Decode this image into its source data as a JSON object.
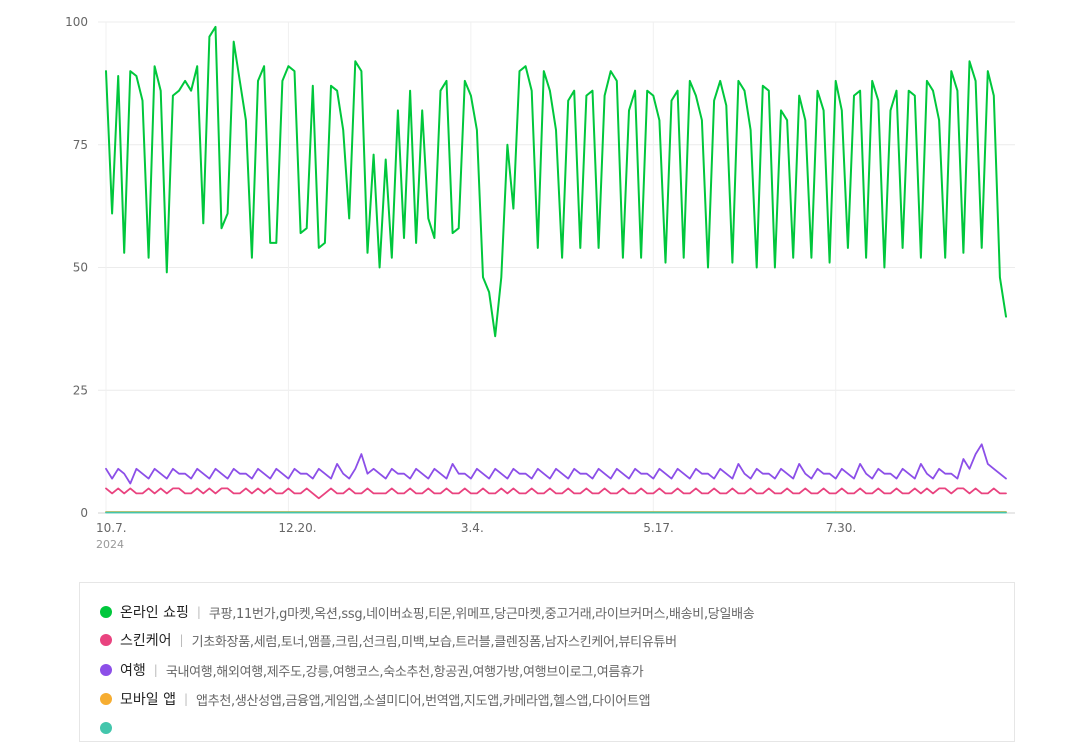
{
  "chart_data": {
    "type": "line",
    "ylim": [
      0,
      100
    ],
    "yticks": [
      0,
      25,
      50,
      75,
      100
    ],
    "xticks": [
      "10.7.",
      "12.20.",
      "3.4.",
      "5.17.",
      "7.30."
    ],
    "xtick_index": [
      0,
      30,
      60,
      90,
      120
    ],
    "year_label": "2024",
    "grid": true,
    "n_points": 149,
    "series": [
      {
        "name": "온라인 쇼핑",
        "color": "#00c73c",
        "values": [
          90,
          61,
          89,
          53,
          90,
          89,
          84,
          52,
          91,
          86,
          49,
          85,
          86,
          88,
          86,
          91,
          59,
          97,
          99,
          58,
          61,
          96,
          88,
          80,
          52,
          88,
          91,
          55,
          55,
          88,
          91,
          90,
          57,
          58,
          87,
          54,
          55,
          87,
          86,
          78,
          60,
          92,
          90,
          53,
          73,
          50,
          72,
          52,
          82,
          56,
          86,
          55,
          82,
          60,
          56,
          86,
          88,
          57,
          58,
          88,
          85,
          78,
          48,
          45,
          36,
          48,
          75,
          62,
          90,
          91,
          86,
          54,
          90,
          86,
          78,
          52,
          84,
          86,
          54,
          85,
          86,
          54,
          85,
          90,
          88,
          52,
          82,
          86,
          52,
          86,
          85,
          80,
          51,
          84,
          86,
          52,
          88,
          85,
          80,
          50,
          84,
          88,
          83,
          51,
          88,
          86,
          78,
          50,
          87,
          86,
          50,
          82,
          80,
          52,
          85,
          80,
          52,
          86,
          82,
          51,
          88,
          82,
          54,
          85,
          86,
          52,
          88,
          84,
          50,
          82,
          86,
          54,
          86,
          85,
          52,
          88,
          86,
          80,
          52,
          90,
          86,
          53,
          92,
          88,
          54,
          90,
          85,
          48,
          40
        ]
      },
      {
        "name": "스킨케어",
        "color": "#e9437f",
        "values": [
          5,
          4,
          5,
          4,
          5,
          4,
          4,
          5,
          4,
          5,
          4,
          5,
          5,
          4,
          4,
          5,
          4,
          5,
          4,
          5,
          5,
          4,
          4,
          5,
          4,
          5,
          4,
          5,
          4,
          4,
          5,
          4,
          4,
          5,
          4,
          3,
          4,
          5,
          4,
          4,
          5,
          4,
          4,
          5,
          4,
          4,
          4,
          5,
          4,
          4,
          5,
          4,
          4,
          5,
          4,
          4,
          5,
          4,
          4,
          5,
          4,
          4,
          5,
          4,
          4,
          5,
          4,
          5,
          4,
          4,
          5,
          4,
          4,
          5,
          4,
          4,
          5,
          4,
          4,
          5,
          4,
          4,
          5,
          4,
          4,
          5,
          4,
          4,
          5,
          4,
          4,
          5,
          4,
          4,
          5,
          4,
          4,
          5,
          4,
          4,
          5,
          4,
          4,
          5,
          4,
          4,
          5,
          4,
          4,
          5,
          4,
          4,
          5,
          4,
          4,
          5,
          4,
          4,
          5,
          4,
          4,
          5,
          4,
          4,
          5,
          4,
          4,
          5,
          4,
          4,
          5,
          4,
          4,
          5,
          4,
          5,
          4,
          5,
          5,
          4,
          5,
          5,
          4,
          5,
          4,
          4,
          5,
          4,
          4
        ]
      },
      {
        "name": "여행",
        "color": "#8c4fe8",
        "values": [
          9,
          7,
          9,
          8,
          6,
          9,
          8,
          7,
          9,
          8,
          7,
          9,
          8,
          8,
          7,
          9,
          8,
          7,
          9,
          8,
          7,
          9,
          8,
          8,
          7,
          9,
          8,
          7,
          9,
          8,
          7,
          9,
          8,
          8,
          7,
          9,
          8,
          7,
          10,
          8,
          7,
          9,
          12,
          8,
          9,
          8,
          7,
          9,
          8,
          8,
          7,
          9,
          8,
          7,
          9,
          8,
          7,
          10,
          8,
          8,
          7,
          9,
          8,
          7,
          9,
          8,
          7,
          9,
          8,
          8,
          7,
          9,
          8,
          7,
          9,
          8,
          7,
          9,
          8,
          8,
          7,
          9,
          8,
          7,
          9,
          8,
          7,
          9,
          8,
          8,
          7,
          9,
          8,
          7,
          9,
          8,
          7,
          9,
          8,
          8,
          7,
          9,
          8,
          7,
          10,
          8,
          7,
          9,
          8,
          8,
          7,
          9,
          8,
          7,
          10,
          8,
          7,
          9,
          8,
          8,
          7,
          9,
          8,
          7,
          10,
          8,
          7,
          9,
          8,
          8,
          7,
          9,
          8,
          7,
          10,
          8,
          7,
          9,
          8,
          8,
          7,
          11,
          9,
          12,
          14,
          10,
          9,
          8,
          7
        ]
      },
      {
        "name": "모바일 앱",
        "color": "#f6ad31",
        "values": [
          0.2,
          0.2,
          0.2,
          0.2,
          0.2,
          0.2,
          0.2,
          0.2,
          0.2,
          0.2,
          0.2,
          0.2,
          0.2,
          0.2,
          0.2,
          0.2,
          0.2,
          0.2,
          0.2,
          0.2,
          0.2,
          0.2,
          0.2,
          0.2,
          0.2,
          0.2,
          0.2,
          0.2,
          0.2,
          0.2,
          0.2,
          0.2,
          0.2,
          0.2,
          0.2,
          0.2,
          0.2,
          0.2,
          0.2,
          0.2,
          0.2,
          0.2,
          0.2,
          0.2,
          0.2,
          0.2,
          0.2,
          0.2,
          0.2,
          0.2,
          0.2,
          0.2,
          0.2,
          0.2,
          0.2,
          0.2,
          0.2,
          0.2,
          0.2,
          0.2,
          0.2,
          0.2,
          0.2,
          0.2,
          0.2,
          0.2,
          0.2,
          0.2,
          0.2,
          0.2,
          0.2,
          0.2,
          0.2,
          0.2,
          0.2,
          0.2,
          0.2,
          0.2,
          0.2,
          0.2,
          0.2,
          0.2,
          0.2,
          0.2,
          0.2,
          0.2,
          0.2,
          0.2,
          0.2,
          0.2,
          0.2,
          0.2,
          0.2,
          0.2,
          0.2,
          0.2,
          0.2,
          0.2,
          0.2,
          0.2,
          0.2,
          0.2,
          0.2,
          0.2,
          0.2,
          0.2,
          0.2,
          0.2,
          0.2,
          0.2,
          0.2,
          0.2,
          0.2,
          0.2,
          0.2,
          0.2,
          0.2,
          0.2,
          0.2,
          0.2,
          0.2,
          0.2,
          0.2,
          0.2,
          0.2,
          0.2,
          0.2,
          0.2,
          0.2,
          0.2,
          0.2,
          0.2,
          0.2,
          0.2,
          0.2,
          0.2,
          0.2,
          0.2,
          0.2,
          0.2,
          0.2,
          0.2,
          0.2,
          0.2,
          0.2,
          0.2,
          0.2,
          0.2,
          0.2
        ]
      },
      {
        "name": "",
        "color": "#43c6ac",
        "values": [
          0.1,
          0.1,
          0.1,
          0.1,
          0.1,
          0.1,
          0.1,
          0.1,
          0.1,
          0.1,
          0.1,
          0.1,
          0.1,
          0.1,
          0.1,
          0.1,
          0.1,
          0.1,
          0.1,
          0.1,
          0.1,
          0.1,
          0.1,
          0.1,
          0.1,
          0.1,
          0.1,
          0.1,
          0.1,
          0.1,
          0.1,
          0.1,
          0.1,
          0.1,
          0.1,
          0.1,
          0.1,
          0.1,
          0.1,
          0.1,
          0.1,
          0.1,
          0.1,
          0.1,
          0.1,
          0.1,
          0.1,
          0.1,
          0.1,
          0.1,
          0.1,
          0.1,
          0.1,
          0.1,
          0.1,
          0.1,
          0.1,
          0.1,
          0.1,
          0.1,
          0.1,
          0.1,
          0.1,
          0.1,
          0.1,
          0.1,
          0.1,
          0.1,
          0.1,
          0.1,
          0.1,
          0.1,
          0.1,
          0.1,
          0.1,
          0.1,
          0.1,
          0.1,
          0.1,
          0.1,
          0.1,
          0.1,
          0.1,
          0.1,
          0.1,
          0.1,
          0.1,
          0.1,
          0.1,
          0.1,
          0.1,
          0.1,
          0.1,
          0.1,
          0.1,
          0.1,
          0.1,
          0.1,
          0.1,
          0.1,
          0.1,
          0.1,
          0.1,
          0.1,
          0.1,
          0.1,
          0.1,
          0.1,
          0.1,
          0.1,
          0.1,
          0.1,
          0.1,
          0.1,
          0.1,
          0.1,
          0.1,
          0.1,
          0.1,
          0.1,
          0.1,
          0.1,
          0.1,
          0.1,
          0.1,
          0.1,
          0.1,
          0.1,
          0.1,
          0.1,
          0.1,
          0.1,
          0.1,
          0.1,
          0.1,
          0.1,
          0.1,
          0.1,
          0.1,
          0.1,
          0.1,
          0.1,
          0.1,
          0.1,
          0.1,
          0.1,
          0.1,
          0.1,
          0.1
        ]
      }
    ]
  },
  "legend": [
    {
      "name": "온라인 쇼핑",
      "color": "#00c73c",
      "keywords": "쿠팡,11번가,g마켓,옥션,ssg,네이버쇼핑,티몬,위메프,당근마켓,중고거래,라이브커머스,배송비,당일배송"
    },
    {
      "name": "스킨케어",
      "color": "#e9437f",
      "keywords": "기초화장품,세럼,토너,앰플,크림,선크림,미백,보습,트러블,클렌징폼,남자스킨케어,뷰티유튜버"
    },
    {
      "name": "여행",
      "color": "#8c4fe8",
      "keywords": "국내여행,해외여행,제주도,강릉,여행코스,숙소추천,항공권,여행가방,여행브이로그,여름휴가"
    },
    {
      "name": "모바일 앱",
      "color": "#f6ad31",
      "keywords": "앱추천,생산성앱,금융앱,게임앱,소셜미디어,번역앱,지도앱,카메라앱,헬스앱,다이어트앱"
    }
  ]
}
